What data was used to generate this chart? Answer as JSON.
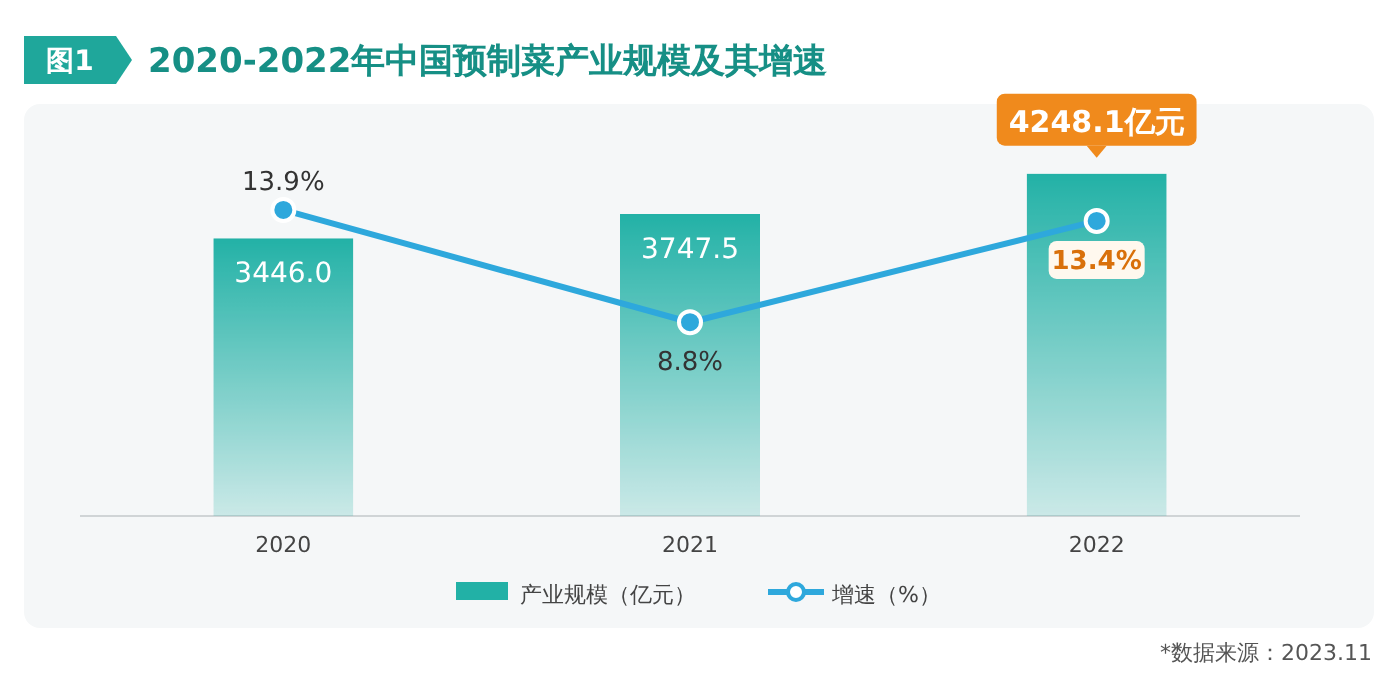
{
  "chart_data": {
    "type": "bar",
    "title": "2020-2022年中国预制菜产业规模及其增速",
    "subtitle": "图1",
    "categories": [
      "2020",
      "2021",
      "2022"
    ],
    "series": [
      {
        "name": "产业规模（亿元）",
        "color": "#22b1a6",
        "values": [
          3446.0,
          3747.5,
          4248.1
        ],
        "value_labels": [
          "3446.0",
          "3747.5",
          "4248.1亿元"
        ]
      },
      {
        "name": "增速（%）",
        "type": "line",
        "axis": "y2",
        "color": "#2ea8dc",
        "marker": "circle",
        "values": [
          13.9,
          8.8,
          13.4
        ],
        "value_labels": [
          "13.9%",
          "8.8%",
          "13.4%"
        ]
      }
    ],
    "tick_labels": "x",
    "grid": false,
    "legend": "bottom",
    "annotations": [
      "*数据来源：2023.11"
    ]
  }
}
